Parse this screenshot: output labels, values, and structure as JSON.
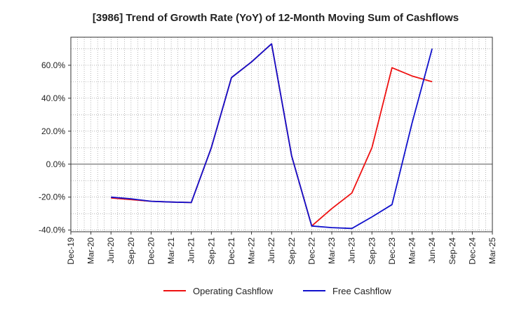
{
  "chart_data": {
    "type": "line",
    "title": "[3986]  Trend of Growth Rate (YoY) of 12-Month Moving Sum of Cashflows",
    "xlabel": "",
    "ylabel": "",
    "x_ticks": [
      "Dec-19",
      "Mar-20",
      "Jun-20",
      "Sep-20",
      "Dec-20",
      "Mar-21",
      "Jun-21",
      "Sep-21",
      "Dec-21",
      "Mar-22",
      "Jun-22",
      "Sep-22",
      "Dec-22",
      "Mar-23",
      "Jun-23",
      "Sep-23",
      "Dec-23",
      "Mar-24",
      "Jun-24",
      "Sep-24",
      "Dec-24",
      "Mar-25"
    ],
    "y_ticks": [
      "-40.0%",
      "-20.0%",
      "0.0%",
      "20.0%",
      "40.0%",
      "60.0%"
    ],
    "y_tick_values": [
      -40,
      -20,
      0,
      20,
      40,
      60
    ],
    "ylim": [
      -41,
      77
    ],
    "grid": true,
    "legend_position": "bottom",
    "series": [
      {
        "name": "Operating Cashflow",
        "color": "#ee1111",
        "x": [
          "Jun-20",
          "Sep-20",
          "Dec-20",
          "Mar-21",
          "Jun-21",
          "Sep-21",
          "Dec-21",
          "Mar-22",
          "Jun-22",
          "Sep-22",
          "Dec-22",
          "Mar-23",
          "Jun-23",
          "Sep-23",
          "Dec-23",
          "Mar-24",
          "Jun-24"
        ],
        "values": [
          -20.5,
          -21.5,
          -22.5,
          -23.0,
          -23.3,
          10.0,
          52.5,
          62.0,
          73.0,
          5.0,
          -37.5,
          -27.0,
          -17.5,
          10.0,
          58.5,
          53.5,
          50.0
        ]
      },
      {
        "name": "Free Cashflow",
        "color": "#1111cc",
        "x": [
          "Jun-20",
          "Sep-20",
          "Dec-20",
          "Mar-21",
          "Jun-21",
          "Sep-21",
          "Dec-21",
          "Mar-22",
          "Jun-22",
          "Sep-22",
          "Dec-22",
          "Mar-23",
          "Jun-23",
          "Sep-23",
          "Dec-23",
          "Mar-24",
          "Jun-24"
        ],
        "values": [
          -20.0,
          -21.0,
          -22.5,
          -23.0,
          -23.3,
          10.0,
          52.5,
          62.0,
          73.0,
          5.0,
          -37.5,
          -38.5,
          -39.0,
          -32.0,
          -24.5,
          25.0,
          70.0
        ]
      }
    ]
  }
}
